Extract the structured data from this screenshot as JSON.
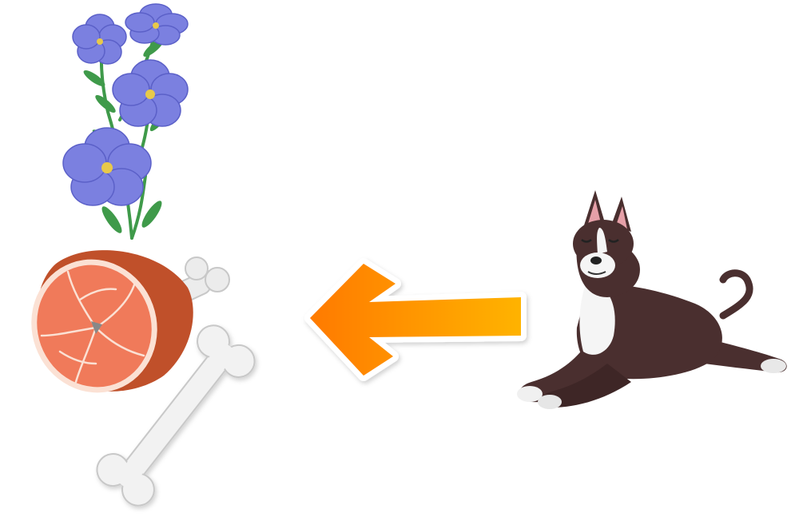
{
  "diagram": {
    "items": [
      {
        "id": "flower",
        "icon": "blue-flax-flower-icon"
      },
      {
        "id": "meat",
        "icon": "ham-leg-icon"
      },
      {
        "id": "bone",
        "icon": "bone-icon"
      },
      {
        "id": "dog",
        "icon": "pit-bull-dog-icon"
      }
    ],
    "arrow": {
      "icon": "left-arrow-icon",
      "from": "dog",
      "to": "meat",
      "gradient_start": "#ff7a00",
      "gradient_end": "#ffb300"
    }
  },
  "colors": {
    "petal": "#7b80e0",
    "petal_dark": "#5b60c8",
    "flower_center": "#e8c94a",
    "leaf": "#3f9a4a",
    "meat_flesh": "#f07a5a",
    "meat_rind": "#c0502a",
    "meat_fat": "#fbe1d4",
    "bone": "#f2f2f2",
    "bone_shadow": "#c8c8c8",
    "dog_coat": "#4a2f2f",
    "dog_white": "#f5f5f5",
    "ear_inner": "#e6a0a8"
  }
}
